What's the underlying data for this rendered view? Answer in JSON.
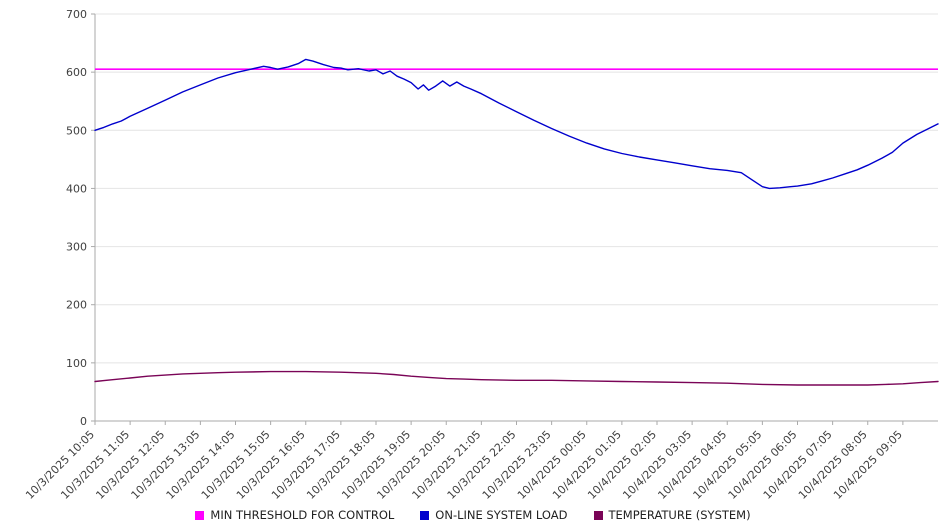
{
  "chart_data": {
    "type": "line",
    "title": "",
    "xlabel": "",
    "ylabel": "",
    "ylim": [
      0,
      700
    ],
    "ytick_step": 100,
    "x_domain": [
      0,
      24
    ],
    "grid": "horizontal",
    "legend_position": "bottom",
    "x_tick_labels": [
      "10/3/2025 10:05",
      "10/3/2025 11:05",
      "10/3/2025 12:05",
      "10/3/2025 13:05",
      "10/3/2025 14:05",
      "10/3/2025 15:05",
      "10/3/2025 16:05",
      "10/3/2025 17:05",
      "10/3/2025 18:05",
      "10/3/2025 19:05",
      "10/3/2025 20:05",
      "10/3/2025 21:05",
      "10/3/2025 22:05",
      "10/3/2025 23:05",
      "10/4/2025 00:05",
      "10/4/2025 01:05",
      "10/4/2025 02:05",
      "10/4/2025 03:05",
      "10/4/2025 04:05",
      "10/4/2025 05:05",
      "10/4/2025 06:05",
      "10/4/2025 07:05",
      "10/4/2025 08:05",
      "10/4/2025 09:05"
    ],
    "series": [
      {
        "name": "MIN THRESHOLD FOR CONTROL",
        "color": "#ff00ff",
        "type": "hline",
        "value": 605
      },
      {
        "name": "ON-LINE SYSTEM LOAD",
        "color": "#0000cd",
        "type": "line",
        "points": [
          [
            0,
            500
          ],
          [
            0.25,
            505
          ],
          [
            0.5,
            511
          ],
          [
            0.75,
            516
          ],
          [
            1,
            524
          ],
          [
            1.5,
            538
          ],
          [
            2,
            552
          ],
          [
            2.5,
            566
          ],
          [
            3,
            578
          ],
          [
            3.5,
            590
          ],
          [
            4,
            599
          ],
          [
            4.5,
            606
          ],
          [
            4.8,
            610
          ],
          [
            5,
            608
          ],
          [
            5.2,
            605
          ],
          [
            5.5,
            609
          ],
          [
            5.8,
            615
          ],
          [
            6,
            622
          ],
          [
            6.2,
            619
          ],
          [
            6.5,
            613
          ],
          [
            6.8,
            608
          ],
          [
            7,
            607
          ],
          [
            7.2,
            604
          ],
          [
            7.5,
            606
          ],
          [
            7.8,
            602
          ],
          [
            8,
            604
          ],
          [
            8.2,
            597
          ],
          [
            8.4,
            602
          ],
          [
            8.6,
            593
          ],
          [
            8.8,
            588
          ],
          [
            9,
            582
          ],
          [
            9.2,
            571
          ],
          [
            9.35,
            578
          ],
          [
            9.5,
            569
          ],
          [
            9.7,
            576
          ],
          [
            9.9,
            585
          ],
          [
            10.1,
            576
          ],
          [
            10.3,
            583
          ],
          [
            10.5,
            576
          ],
          [
            10.7,
            571
          ],
          [
            11,
            563
          ],
          [
            11.5,
            547
          ],
          [
            12,
            532
          ],
          [
            12.5,
            517
          ],
          [
            13,
            503
          ],
          [
            13.5,
            490
          ],
          [
            14,
            478
          ],
          [
            14.5,
            468
          ],
          [
            15,
            460
          ],
          [
            15.5,
            454
          ],
          [
            16,
            449
          ],
          [
            16.5,
            444
          ],
          [
            17,
            439
          ],
          [
            17.5,
            434
          ],
          [
            18,
            431
          ],
          [
            18.4,
            427
          ],
          [
            18.7,
            415
          ],
          [
            19,
            403
          ],
          [
            19.2,
            400
          ],
          [
            19.5,
            401
          ],
          [
            19.8,
            403
          ],
          [
            20,
            404
          ],
          [
            20.4,
            408
          ],
          [
            20.7,
            413
          ],
          [
            21,
            418
          ],
          [
            21.4,
            426
          ],
          [
            21.7,
            432
          ],
          [
            22,
            440
          ],
          [
            22.4,
            452
          ],
          [
            22.7,
            462
          ],
          [
            23,
            478
          ],
          [
            23.4,
            493
          ],
          [
            23.7,
            502
          ],
          [
            24,
            511
          ]
        ]
      },
      {
        "name": "TEMPERATURE (SYSTEM)",
        "color": "#7a0457",
        "type": "line",
        "points": [
          [
            0,
            68
          ],
          [
            0.5,
            71
          ],
          [
            1,
            74
          ],
          [
            1.5,
            77
          ],
          [
            2,
            79
          ],
          [
            2.5,
            81
          ],
          [
            3,
            82
          ],
          [
            3.5,
            83
          ],
          [
            4,
            84
          ],
          [
            5,
            85
          ],
          [
            6,
            85
          ],
          [
            7,
            84
          ],
          [
            8,
            82
          ],
          [
            8.5,
            80
          ],
          [
            9,
            77
          ],
          [
            9.5,
            75
          ],
          [
            10,
            73
          ],
          [
            10.5,
            72
          ],
          [
            11,
            71
          ],
          [
            12,
            70
          ],
          [
            13,
            70
          ],
          [
            14,
            69
          ],
          [
            15,
            68
          ],
          [
            16,
            67
          ],
          [
            17,
            66
          ],
          [
            18,
            65
          ],
          [
            19,
            63
          ],
          [
            20,
            62
          ],
          [
            21,
            62
          ],
          [
            22,
            62
          ],
          [
            22.5,
            63
          ],
          [
            23,
            64
          ],
          [
            23.5,
            66
          ],
          [
            24,
            68
          ]
        ]
      }
    ]
  }
}
